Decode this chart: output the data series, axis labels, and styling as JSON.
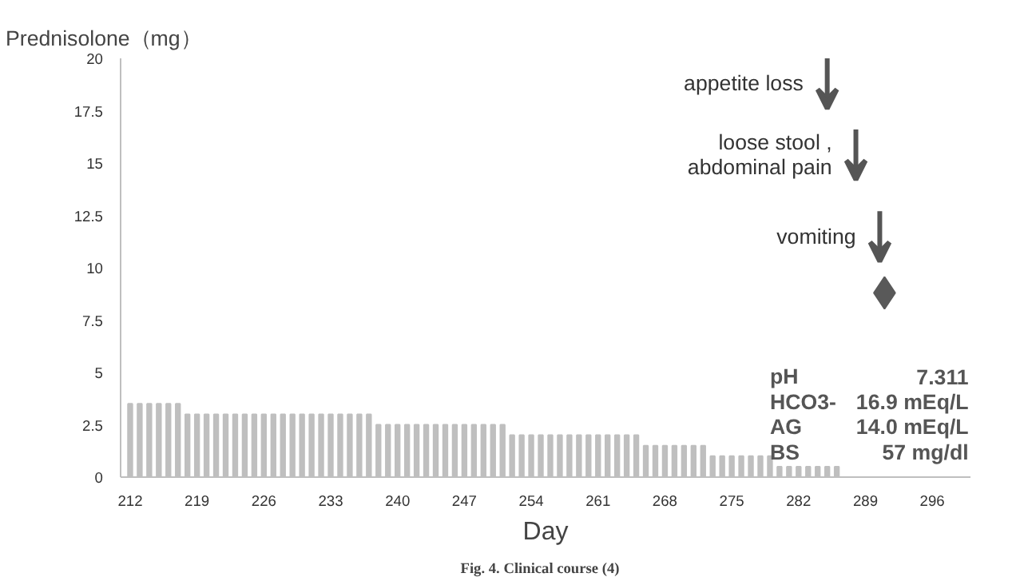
{
  "chart_data": {
    "type": "bar",
    "title": "Prednisolone（mg）",
    "xlabel": "Day",
    "x": [
      212,
      213,
      214,
      215,
      216,
      217,
      218,
      219,
      220,
      221,
      222,
      223,
      224,
      225,
      226,
      227,
      228,
      229,
      230,
      231,
      232,
      233,
      234,
      235,
      236,
      237,
      238,
      239,
      240,
      241,
      242,
      243,
      244,
      245,
      246,
      247,
      248,
      249,
      250,
      251,
      252,
      253,
      254,
      255,
      256,
      257,
      258,
      259,
      260,
      261,
      262,
      263,
      264,
      265,
      266,
      267,
      268,
      269,
      270,
      271,
      272,
      273,
      274,
      275,
      276,
      277,
      278,
      279,
      280,
      281,
      282,
      283,
      284,
      285,
      286
    ],
    "series": [
      {
        "color": "#bfbfbf",
        "values": [
          3.5,
          3.5,
          3.5,
          3.5,
          3.5,
          3.5,
          3,
          3,
          3,
          3,
          3,
          3,
          3,
          3,
          3,
          3,
          3,
          3,
          3,
          3,
          3,
          3,
          3,
          3,
          3,
          3,
          2.5,
          2.5,
          2.5,
          2.5,
          2.5,
          2.5,
          2.5,
          2.5,
          2.5,
          2.5,
          2.5,
          2.5,
          2.5,
          2.5,
          2,
          2,
          2,
          2,
          2,
          2,
          2,
          2,
          2,
          2,
          2,
          2,
          2,
          2,
          1.5,
          1.5,
          1.5,
          1.5,
          1.5,
          1.5,
          1.5,
          1,
          1,
          1,
          1,
          1,
          1,
          1,
          0.5,
          0.5,
          0.5,
          0.5,
          0.5,
          0.5,
          0.5
        ]
      },
      {
        "type": "scatter",
        "marker": "diamond",
        "color": "#595959",
        "x": [
          291
        ],
        "values": [
          8.8
        ]
      }
    ],
    "xlim": [
      211,
      300
    ],
    "ylim": [
      0,
      20
    ],
    "xticks": [
      212,
      219,
      226,
      233,
      240,
      247,
      254,
      261,
      268,
      275,
      282,
      289,
      296
    ],
    "yticks": [
      0,
      2.5,
      5,
      7.5,
      10,
      12.5,
      15,
      17.5,
      20
    ],
    "grid": false,
    "annotations": [
      "appetite loss",
      "loose stool ,\nabdominal pain",
      "vomiting",
      "pH 7.311",
      "HCO3- 16.9 mEq/L",
      "AG 14.0 mEq/L",
      "BS 57 mg/dl",
      "Fig. 4.    Clinical course (4)"
    ]
  }
}
